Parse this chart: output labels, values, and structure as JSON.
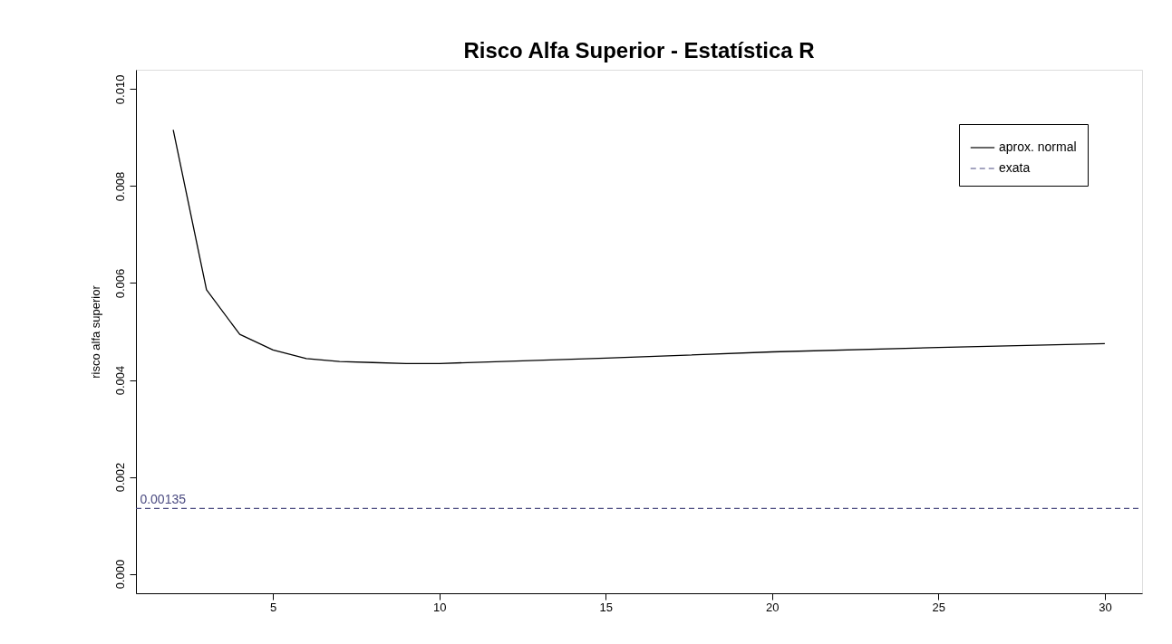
{
  "chart_data": {
    "type": "line",
    "title": "Risco Alfa Superior  - Estatística R",
    "ylabel": "risco alfa superior",
    "xlim": [
      0.88,
      31.12
    ],
    "xticks": [
      5,
      10,
      15,
      20,
      25,
      30
    ],
    "ylim": [
      -0.0004,
      0.0104
    ],
    "yticks": [
      {
        "value": 0,
        "label": "0.000"
      },
      {
        "value": 0.002,
        "label": "0.002"
      },
      {
        "value": 0.004,
        "label": "0.004"
      },
      {
        "value": 0.006,
        "label": "0.006"
      },
      {
        "value": 0.008,
        "label": "0.008"
      },
      {
        "value": 0.01,
        "label": "0.010"
      }
    ],
    "grid": false,
    "legend": "top right",
    "marker": "none",
    "series": [
      {
        "name": "aprox. normal",
        "color": "#000000",
        "line_style": "solid",
        "x": [
          2,
          3,
          4,
          5,
          6,
          7,
          8,
          9,
          10,
          15,
          20,
          25,
          30
        ],
        "values": [
          0.00916,
          0.00586,
          0.00494,
          0.00462,
          0.00444,
          0.00438,
          0.00436,
          0.00434,
          0.00434,
          0.00445,
          0.00458,
          0.00467,
          0.00475
        ]
      },
      {
        "name": "exata",
        "color": "#4a4a80",
        "line_style": "dashed",
        "x": [
          0.88,
          31.12
        ],
        "values": [
          0.00135,
          0.00135
        ]
      }
    ],
    "annotations": [
      {
        "text": "0.00135",
        "x": 1,
        "y": 0.00135
      }
    ]
  }
}
